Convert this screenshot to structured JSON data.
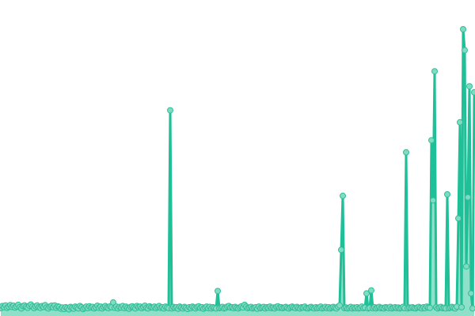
{
  "chart_data": {
    "type": "area",
    "title": "",
    "xlabel": "",
    "ylabel": "",
    "ylim": [
      0,
      100
    ],
    "grid": false,
    "legend": "none",
    "colors": {
      "line": "#1fbf98",
      "fill": "#8ee0c9",
      "marker_fill": "#7fdcc2",
      "marker_stroke": "#2cbf99"
    },
    "values": [
      2.1,
      2.8,
      2.4,
      3.0,
      2.2,
      2.6,
      3.1,
      2.5,
      2.9,
      2.3,
      2.7,
      3.2,
      2.4,
      2.0,
      2.8,
      3.0,
      2.5,
      2.2,
      2.9,
      3.3,
      2.6,
      2.1,
      2.7,
      3.0,
      2.4,
      2.2,
      2.8,
      2.5,
      3.1,
      2.3,
      2.0,
      2.6,
      2.9,
      2.4,
      3.0,
      2.2,
      2.7,
      2.5,
      1.9,
      2.3,
      1.8,
      2.4,
      2.1,
      1.7,
      2.5,
      2.2,
      1.9,
      2.6,
      2.3,
      2.0,
      2.8,
      2.4,
      1.8,
      2.2,
      2.6,
      2.1,
      2.7,
      2.3,
      2.5,
      2.0,
      2.4,
      2.9,
      2.2,
      2.6,
      2.0,
      2.5,
      2.8,
      2.3,
      2.1,
      2.7,
      2.4,
      4.0,
      2.2,
      2.6,
      2.0,
      2.5,
      2.3,
      2.8,
      2.1,
      2.6,
      2.2,
      1.9,
      2.5,
      2.7,
      2.3,
      2.0,
      2.8,
      2.4,
      2.6,
      2.1,
      2.5,
      2.9,
      2.2,
      2.0,
      2.7,
      2.4,
      2.3,
      2.6,
      2.1,
      2.5,
      2.8,
      2.2,
      2.4,
      2.0,
      2.6,
      2.3,
      2.1,
      68,
      2.0,
      2.5,
      2.2,
      2.4,
      1.9,
      2.6,
      2.3,
      2.0,
      2.5,
      2.2,
      1.8,
      2.4,
      2.1,
      2.6,
      2.3,
      2.0,
      2.5,
      2.7,
      2.2,
      2.4,
      1.9,
      2.3,
      2.6,
      2.1,
      2.5,
      2.0,
      2.4,
      2.2,
      2.0,
      7.8,
      2.1,
      2.3,
      2.5,
      2.0,
      2.2,
      2.6,
      2.8,
      2.3,
      2.4,
      2.1,
      2.5,
      2.2,
      2.0,
      2.4,
      2.7,
      2.3,
      3.2,
      2.6,
      2.1,
      2.3,
      2.5,
      2.0,
      2.2,
      2.4,
      1.9,
      2.6,
      2.1,
      2.3,
      2.5,
      2.0,
      2.4,
      2.2,
      2.6,
      2.1,
      2.3,
      2.0,
      2.5,
      2.7,
      2.2,
      2.4,
      2.1,
      2.3,
      2.5,
      2.2,
      2.0,
      2.4,
      2.6,
      2.3,
      2.1,
      2.5,
      2.2,
      2.0,
      2.4,
      2.3,
      2.6,
      2.1,
      2.0,
      2.3,
      2.5,
      2.2,
      2.0,
      2.4,
      2.1,
      2.3,
      2.6,
      2.0,
      2.2,
      2.5,
      2.1,
      2.4,
      2.0,
      2.3,
      2.5,
      2.2,
      2.0,
      2.6,
      3.0,
      21.5,
      39.5,
      2.1,
      2.3,
      2.0,
      2.2,
      2.5,
      2.0,
      2.3,
      2.1,
      2.4,
      2.0,
      2.2,
      2.6,
      2.1,
      2.3,
      7.0,
      2.0,
      2.2,
      8.0,
      2.1,
      2.4,
      2.0,
      2.3,
      2.5,
      2.1,
      2.2,
      2.0,
      2.4,
      2.3,
      2.1,
      2.5,
      2.0,
      2.2,
      2.4,
      2.1,
      2.3,
      2.0,
      2.2,
      2.5,
      2.1,
      54,
      2.0,
      2.3,
      2.2,
      2.4,
      2.1,
      2.0,
      2.3,
      2.5,
      2.2,
      2.0,
      2.4,
      2.1,
      2.6,
      2.3,
      2.2,
      58,
      38,
      81,
      2.4,
      2.0,
      2.3,
      2.5,
      2.1,
      2.2,
      2.0,
      40,
      2.1,
      2.3,
      2.5,
      2.2,
      2.0,
      2.6,
      32,
      64,
      2.4,
      95,
      88,
      16,
      39,
      76,
      7,
      2.0,
      74
    ]
  }
}
